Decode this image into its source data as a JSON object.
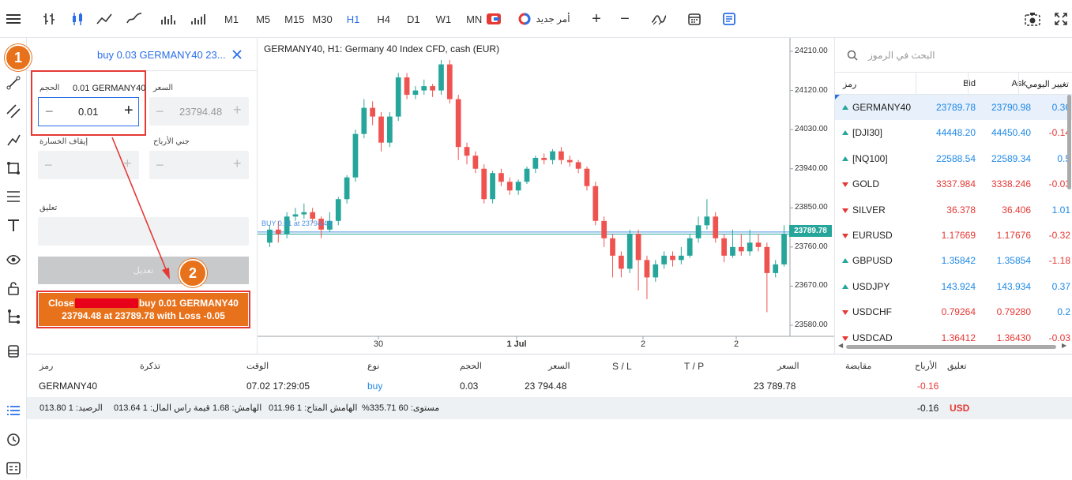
{
  "toolbar": {
    "timeframes": [
      "M1",
      "M5",
      "M15",
      "M30",
      "H1",
      "H4",
      "D1",
      "W1",
      "MN"
    ],
    "active_timeframe": "H1",
    "new_order_label": "أمر جديد"
  },
  "order_panel": {
    "title": "buy 0.03 GERMANY40 23...",
    "volume_label": "الحجم",
    "volume_symbol": "0.01 GERMANY40",
    "volume_value": "0.01",
    "price_label": "السعر",
    "price_value": "23794.48",
    "stop_loss_label": "إيقاف الخسارة",
    "take_profit_label": "جني الأرباح",
    "comment_label": "تعليق",
    "modify_label": "تعديل",
    "close_line1_prefix": "Close",
    "close_line1_suffix": "buy 0.01 GERMANY40",
    "close_line2": "23794.48 at 23789.78 with Loss -0.05",
    "badge1": "1",
    "badge2": "2"
  },
  "chart": {
    "title": "GERMANY40, H1: Germany 40 Index CFD, cash (EUR)",
    "buy_line_label": "BUY 0.01 at 23794.48",
    "current_price": "23789.78",
    "price_ticks": [
      "24210.00",
      "24120.00",
      "24030.00",
      "23940.00",
      "23850.00",
      "23760.00",
      "23670.00",
      "23580.00"
    ],
    "time_ticks": [
      "30",
      "1 Jul",
      "2",
      "2"
    ]
  },
  "chart_data": {
    "type": "candlestick",
    "title": "GERMANY40, H1: Germany 40 Index CFD, cash (EUR)",
    "ylim": [
      23560,
      24230
    ],
    "x_labels": [
      "30",
      "1 Jul",
      "2",
      "2"
    ],
    "horizontal_lines": [
      {
        "label": "BUY 0.01 at 23794.48",
        "value": 23794.48
      },
      {
        "label": "23789.78",
        "value": 23789.78
      }
    ],
    "candles": [
      {
        "o": 23770,
        "c": 23800,
        "h": 23810,
        "l": 23760
      },
      {
        "o": 23800,
        "c": 23790,
        "h": 23820,
        "l": 23770
      },
      {
        "o": 23790,
        "c": 23830,
        "h": 23840,
        "l": 23780
      },
      {
        "o": 23830,
        "c": 23835,
        "h": 23850,
        "l": 23820
      },
      {
        "o": 23835,
        "c": 23840,
        "h": 23860,
        "l": 23825
      },
      {
        "o": 23840,
        "c": 23825,
        "h": 23850,
        "l": 23815
      },
      {
        "o": 23825,
        "c": 23800,
        "h": 23830,
        "l": 23780
      },
      {
        "o": 23800,
        "c": 23820,
        "h": 23840,
        "l": 23795
      },
      {
        "o": 23820,
        "c": 23870,
        "h": 23875,
        "l": 23810
      },
      {
        "o": 23870,
        "c": 23920,
        "h": 23925,
        "l": 23860
      },
      {
        "o": 23920,
        "c": 24020,
        "h": 24030,
        "l": 23910
      },
      {
        "o": 24020,
        "c": 24080,
        "h": 24100,
        "l": 24010
      },
      {
        "o": 24080,
        "c": 24060,
        "h": 24095,
        "l": 24040
      },
      {
        "o": 24060,
        "c": 24000,
        "h": 24070,
        "l": 23980
      },
      {
        "o": 24000,
        "c": 24060,
        "h": 24070,
        "l": 23990
      },
      {
        "o": 24060,
        "c": 24150,
        "h": 24160,
        "l": 24050
      },
      {
        "o": 24150,
        "c": 24110,
        "h": 24160,
        "l": 24100
      },
      {
        "o": 24110,
        "c": 24120,
        "h": 24130,
        "l": 24100
      },
      {
        "o": 24120,
        "c": 24130,
        "h": 24145,
        "l": 24110
      },
      {
        "o": 24130,
        "c": 24120,
        "h": 24135,
        "l": 24105
      },
      {
        "o": 24120,
        "c": 24180,
        "h": 24190,
        "l": 24110
      },
      {
        "o": 24180,
        "c": 24100,
        "h": 24190,
        "l": 24090
      },
      {
        "o": 24100,
        "c": 23990,
        "h": 24110,
        "l": 23960
      },
      {
        "o": 23990,
        "c": 23970,
        "h": 24000,
        "l": 23950
      },
      {
        "o": 23970,
        "c": 23940,
        "h": 23980,
        "l": 23930
      },
      {
        "o": 23940,
        "c": 23870,
        "h": 23950,
        "l": 23860
      },
      {
        "o": 23870,
        "c": 23930,
        "h": 23935,
        "l": 23860
      },
      {
        "o": 23930,
        "c": 23910,
        "h": 23940,
        "l": 23900
      },
      {
        "o": 23910,
        "c": 23890,
        "h": 23920,
        "l": 23880
      },
      {
        "o": 23890,
        "c": 23910,
        "h": 23915,
        "l": 23880
      },
      {
        "o": 23910,
        "c": 23940,
        "h": 23945,
        "l": 23905
      },
      {
        "o": 23940,
        "c": 23965,
        "h": 23970,
        "l": 23930
      },
      {
        "o": 23965,
        "c": 23960,
        "h": 23975,
        "l": 23950
      },
      {
        "o": 23960,
        "c": 23980,
        "h": 23985,
        "l": 23950
      },
      {
        "o": 23980,
        "c": 23960,
        "h": 23990,
        "l": 23950
      },
      {
        "o": 23960,
        "c": 23955,
        "h": 23970,
        "l": 23945
      },
      {
        "o": 23955,
        "c": 23940,
        "h": 23960,
        "l": 23930
      },
      {
        "o": 23940,
        "c": 23900,
        "h": 23945,
        "l": 23890
      },
      {
        "o": 23900,
        "c": 23820,
        "h": 23910,
        "l": 23810
      },
      {
        "o": 23820,
        "c": 23780,
        "h": 23830,
        "l": 23760
      },
      {
        "o": 23780,
        "c": 23740,
        "h": 23790,
        "l": 23690
      },
      {
        "o": 23740,
        "c": 23710,
        "h": 23750,
        "l": 23690
      },
      {
        "o": 23710,
        "c": 23790,
        "h": 23800,
        "l": 23700
      },
      {
        "o": 23790,
        "c": 23730,
        "h": 23800,
        "l": 23660
      },
      {
        "o": 23730,
        "c": 23690,
        "h": 23740,
        "l": 23640
      },
      {
        "o": 23690,
        "c": 23720,
        "h": 23730,
        "l": 23680
      },
      {
        "o": 23720,
        "c": 23740,
        "h": 23750,
        "l": 23710
      },
      {
        "o": 23740,
        "c": 23730,
        "h": 23750,
        "l": 23715
      },
      {
        "o": 23730,
        "c": 23740,
        "h": 23760,
        "l": 23720
      },
      {
        "o": 23740,
        "c": 23780,
        "h": 23790,
        "l": 23735
      },
      {
        "o": 23780,
        "c": 23810,
        "h": 23830,
        "l": 23770
      },
      {
        "o": 23810,
        "c": 23830,
        "h": 23870,
        "l": 23800
      },
      {
        "o": 23830,
        "c": 23780,
        "h": 23840,
        "l": 23770
      },
      {
        "o": 23780,
        "c": 23740,
        "h": 23790,
        "l": 23725
      },
      {
        "o": 23740,
        "c": 23760,
        "h": 23800,
        "l": 23735
      },
      {
        "o": 23760,
        "c": 23750,
        "h": 23790,
        "l": 23740
      },
      {
        "o": 23750,
        "c": 23770,
        "h": 23800,
        "l": 23740
      },
      {
        "o": 23770,
        "c": 23760,
        "h": 23790,
        "l": 23750
      },
      {
        "o": 23760,
        "c": 23700,
        "h": 23770,
        "l": 23610
      },
      {
        "o": 23700,
        "c": 23720,
        "h": 23730,
        "l": 23690
      },
      {
        "o": 23720,
        "c": 23790,
        "h": 23810,
        "l": 23715
      }
    ]
  },
  "watchlist": {
    "search_placeholder": "البحث في الرموز",
    "headers": {
      "symbol": "رمز",
      "bid": "Bid",
      "ask": "Ask",
      "change": "تغيير اليومي"
    },
    "rows": [
      {
        "symbol": "GERMANY40",
        "bid": "23789.78",
        "ask": "23790.98",
        "change": "0.36",
        "dir": "up",
        "selected": true
      },
      {
        "symbol": "[DJI30]",
        "bid": "44448.20",
        "ask": "44450.40",
        "change": "-0.14",
        "dir": "up"
      },
      {
        "symbol": "[NQ100]",
        "bid": "22588.54",
        "ask": "22589.34",
        "change": "0.5",
        "dir": "up"
      },
      {
        "symbol": "GOLD",
        "bid": "3337.984",
        "ask": "3338.246",
        "change": "-0.03",
        "dir": "down"
      },
      {
        "symbol": "SILVER",
        "bid": "36.378",
        "ask": "36.406",
        "change": "1.01",
        "dir": "down"
      },
      {
        "symbol": "EURUSD",
        "bid": "1.17669",
        "ask": "1.17676",
        "change": "-0.32",
        "dir": "down"
      },
      {
        "symbol": "GBPUSD",
        "bid": "1.35842",
        "ask": "1.35854",
        "change": "-1.18",
        "dir": "up"
      },
      {
        "symbol": "USDJPY",
        "bid": "143.924",
        "ask": "143.934",
        "change": "0.37",
        "dir": "up"
      },
      {
        "symbol": "USDCHF",
        "bid": "0.79264",
        "ask": "0.79280",
        "change": "0.2",
        "dir": "down"
      },
      {
        "symbol": "USDCAD",
        "bid": "1.36412",
        "ask": "1.36430",
        "change": "-0.03",
        "dir": "down"
      }
    ]
  },
  "positions": {
    "headers": {
      "symbol": "رمز",
      "ticket": "تذكرة",
      "time": "الوقت",
      "type": "نوع",
      "volume": "الحجم",
      "price": "السعر",
      "sl": "S / L",
      "tp": "T / P",
      "current": "السعر",
      "swap": "مقايضة",
      "profit": "الأرباح",
      "comment": "تعليق"
    },
    "row": {
      "symbol": "GERMANY40",
      "time": "07.02 17:29:05",
      "type": "buy",
      "volume": "0.03",
      "price": "23 794.48",
      "current": "23 789.78",
      "profit": "-0.16"
    },
    "summary": {
      "balance": "الرصيد: 1 013.80",
      "capital": "قيمة راس المال: 1 013.64",
      "margin": "الهامش: 1.68",
      "free_margin": "الهامش المتاح: 1 011.96",
      "level": "%مستوى: 60 335.71",
      "total": "-0.16",
      "currency": "USD"
    }
  },
  "colors": {
    "accent": "#2a6ee8",
    "bull": "#26a69a",
    "bear": "#ef5350",
    "close_button": "#e8721c",
    "highlight": "#e53935"
  }
}
